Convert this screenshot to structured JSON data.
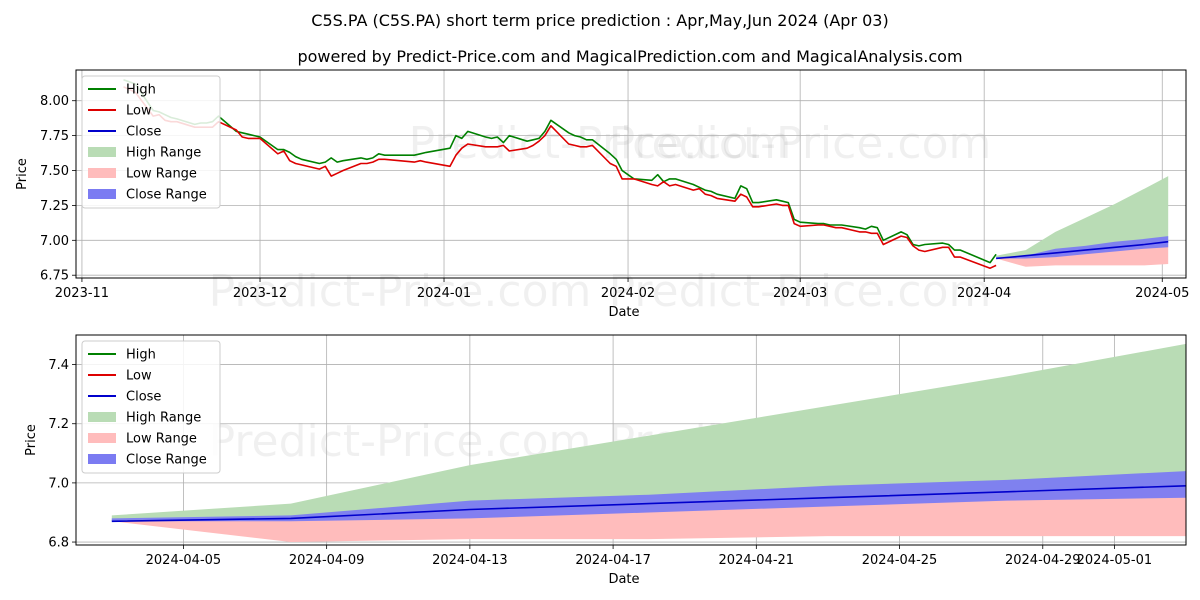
{
  "title": "C5S.PA (C5S.PA) short term price prediction : Apr,May,Jun 2024 (Apr 03)",
  "subtitle": "powered by Predict-Price.com and MagicalPrediction.com and MagicalAnalysis.com",
  "watermark": "Predict-Price.com",
  "colors": {
    "high": "#008000",
    "low": "#dd0000",
    "close": "#0000cc",
    "high_range": "#b9dcb5",
    "low_range": "#ffbcbc",
    "close_range": "#7b7bf2",
    "grid": "#b0b0b0"
  },
  "chart_data": [
    {
      "type": "line",
      "xlabel": "Date",
      "ylabel": "Price",
      "xlim": [
        "2023-10-31",
        "2024-05-05"
      ],
      "ylim": [
        6.73,
        8.22
      ],
      "yticks": [
        6.75,
        7.0,
        7.25,
        7.5,
        7.75,
        8.0
      ],
      "ytick_labels": [
        "6.75",
        "7.00",
        "7.25",
        "7.50",
        "7.75",
        "8.00"
      ],
      "xticks": [
        "2023-11-01",
        "2023-12-01",
        "2024-01-01",
        "2024-02-01",
        "2024-03-01",
        "2024-04-01",
        "2024-05-01"
      ],
      "xtick_labels": [
        "2023-11",
        "2023-12",
        "2024-01",
        "2024-02",
        "2024-03",
        "2024-04",
        "2024-05"
      ],
      "legend": {
        "position": "top-left",
        "entries": [
          "High",
          "Low",
          "Close",
          "High Range",
          "Low Range",
          "Close Range"
        ]
      },
      "grid": true,
      "series": [
        {
          "name": "High",
          "x": [
            "2023-11-08",
            "2023-11-10",
            "2023-11-13",
            "2023-11-14",
            "2023-11-15",
            "2023-11-16",
            "2023-11-17",
            "2023-11-20",
            "2023-11-21",
            "2023-11-22",
            "2023-11-23",
            "2023-11-24",
            "2023-11-27",
            "2023-11-28",
            "2023-11-29",
            "2023-11-30",
            "2023-12-01",
            "2023-12-04",
            "2023-12-05",
            "2023-12-06",
            "2023-12-07",
            "2023-12-08",
            "2023-12-11",
            "2023-12-12",
            "2023-12-13",
            "2023-12-14",
            "2023-12-15",
            "2023-12-18",
            "2023-12-19",
            "2023-12-20",
            "2023-12-21",
            "2023-12-22",
            "2023-12-27",
            "2023-12-28",
            "2023-12-29",
            "2024-01-02",
            "2024-01-03",
            "2024-01-04",
            "2024-01-05",
            "2024-01-08",
            "2024-01-09",
            "2024-01-10",
            "2024-01-11",
            "2024-01-12",
            "2024-01-15",
            "2024-01-16",
            "2024-01-17",
            "2024-01-18",
            "2024-01-19",
            "2024-01-22",
            "2024-01-23",
            "2024-01-24",
            "2024-01-25",
            "2024-01-26",
            "2024-01-29",
            "2024-01-30",
            "2024-01-31",
            "2024-02-01",
            "2024-02-02",
            "2024-02-05",
            "2024-02-06",
            "2024-02-07",
            "2024-02-08",
            "2024-02-09",
            "2024-02-12",
            "2024-02-13",
            "2024-02-14",
            "2024-02-15",
            "2024-02-16",
            "2024-02-19",
            "2024-02-20",
            "2024-02-21",
            "2024-02-22",
            "2024-02-23",
            "2024-02-26",
            "2024-02-27",
            "2024-02-28",
            "2024-02-29",
            "2024-03-01",
            "2024-03-04",
            "2024-03-05",
            "2024-03-06",
            "2024-03-07",
            "2024-03-08",
            "2024-03-11",
            "2024-03-12",
            "2024-03-13",
            "2024-03-14",
            "2024-03-15",
            "2024-03-18",
            "2024-03-19",
            "2024-03-20",
            "2024-03-21",
            "2024-03-22",
            "2024-03-25",
            "2024-03-26",
            "2024-03-27",
            "2024-03-28",
            "2024-04-02",
            "2024-04-03"
          ],
          "values": [
            8.15,
            8.12,
            7.93,
            7.92,
            7.9,
            7.88,
            7.87,
            7.83,
            7.84,
            7.84,
            7.85,
            7.89,
            7.78,
            7.77,
            7.76,
            7.75,
            7.74,
            7.65,
            7.65,
            7.63,
            7.6,
            7.58,
            7.55,
            7.56,
            7.59,
            7.56,
            7.57,
            7.59,
            7.58,
            7.59,
            7.62,
            7.61,
            7.61,
            7.62,
            7.63,
            7.66,
            7.75,
            7.73,
            7.78,
            7.74,
            7.73,
            7.74,
            7.7,
            7.75,
            7.71,
            7.72,
            7.73,
            7.78,
            7.86,
            7.77,
            7.75,
            7.74,
            7.72,
            7.72,
            7.62,
            7.58,
            7.5,
            7.47,
            7.44,
            7.43,
            7.47,
            7.42,
            7.44,
            7.44,
            7.4,
            7.38,
            7.36,
            7.35,
            7.33,
            7.3,
            7.39,
            7.37,
            7.27,
            7.27,
            7.29,
            7.28,
            7.27,
            7.15,
            7.13,
            7.12,
            7.12,
            7.11,
            7.11,
            7.11,
            7.09,
            7.08,
            7.1,
            7.09,
            7.0,
            7.06,
            7.04,
            6.97,
            6.96,
            6.97,
            6.98,
            6.97,
            6.93,
            6.93,
            6.84,
            6.9
          ]
        },
        {
          "name": "Low",
          "x": [
            "2023-11-08",
            "2023-11-10",
            "2023-11-13",
            "2023-11-14",
            "2023-11-15",
            "2023-11-16",
            "2023-11-17",
            "2023-11-20",
            "2023-11-21",
            "2023-11-22",
            "2023-11-23",
            "2023-11-24",
            "2023-11-27",
            "2023-11-28",
            "2023-11-29",
            "2023-11-30",
            "2023-12-01",
            "2023-12-04",
            "2023-12-05",
            "2023-12-06",
            "2023-12-07",
            "2023-12-08",
            "2023-12-11",
            "2023-12-12",
            "2023-12-13",
            "2023-12-14",
            "2023-12-15",
            "2023-12-18",
            "2023-12-19",
            "2023-12-20",
            "2023-12-21",
            "2023-12-22",
            "2023-12-27",
            "2023-12-28",
            "2023-12-29",
            "2024-01-02",
            "2024-01-03",
            "2024-01-04",
            "2024-01-05",
            "2024-01-08",
            "2024-01-09",
            "2024-01-10",
            "2024-01-11",
            "2024-01-12",
            "2024-01-15",
            "2024-01-16",
            "2024-01-17",
            "2024-01-18",
            "2024-01-19",
            "2024-01-22",
            "2024-01-23",
            "2024-01-24",
            "2024-01-25",
            "2024-01-26",
            "2024-01-29",
            "2024-01-30",
            "2024-01-31",
            "2024-02-01",
            "2024-02-02",
            "2024-02-05",
            "2024-02-06",
            "2024-02-07",
            "2024-02-08",
            "2024-02-09",
            "2024-02-12",
            "2024-02-13",
            "2024-02-14",
            "2024-02-15",
            "2024-02-16",
            "2024-02-19",
            "2024-02-20",
            "2024-02-21",
            "2024-02-22",
            "2024-02-23",
            "2024-02-26",
            "2024-02-27",
            "2024-02-28",
            "2024-02-29",
            "2024-03-01",
            "2024-03-04",
            "2024-03-05",
            "2024-03-06",
            "2024-03-07",
            "2024-03-08",
            "2024-03-11",
            "2024-03-12",
            "2024-03-13",
            "2024-03-14",
            "2024-03-15",
            "2024-03-18",
            "2024-03-19",
            "2024-03-20",
            "2024-03-21",
            "2024-03-22",
            "2024-03-25",
            "2024-03-26",
            "2024-03-27",
            "2024-03-28",
            "2024-04-02",
            "2024-04-03"
          ],
          "values": [
            8.1,
            8.06,
            7.89,
            7.9,
            7.86,
            7.85,
            7.85,
            7.81,
            7.81,
            7.81,
            7.81,
            7.85,
            7.79,
            7.74,
            7.73,
            7.73,
            7.73,
            7.62,
            7.64,
            7.57,
            7.55,
            7.54,
            7.51,
            7.53,
            7.46,
            7.48,
            7.5,
            7.55,
            7.55,
            7.56,
            7.58,
            7.58,
            7.56,
            7.57,
            7.56,
            7.53,
            7.61,
            7.66,
            7.69,
            7.67,
            7.67,
            7.67,
            7.68,
            7.64,
            7.66,
            7.68,
            7.71,
            7.75,
            7.82,
            7.69,
            7.68,
            7.67,
            7.67,
            7.68,
            7.55,
            7.53,
            7.44,
            7.44,
            7.44,
            7.4,
            7.39,
            7.42,
            7.39,
            7.4,
            7.36,
            7.37,
            7.33,
            7.32,
            7.3,
            7.28,
            7.33,
            7.31,
            7.24,
            7.24,
            7.26,
            7.25,
            7.25,
            7.12,
            7.1,
            7.11,
            7.11,
            7.1,
            7.09,
            7.09,
            7.06,
            7.06,
            7.05,
            7.05,
            6.97,
            7.03,
            7.02,
            6.96,
            6.93,
            6.92,
            6.95,
            6.95,
            6.88,
            6.88,
            6.8,
            6.82
          ]
        },
        {
          "name": "Close",
          "x": [
            "2024-04-03",
            "2024-04-08",
            "2024-04-13",
            "2024-04-18",
            "2024-04-23",
            "2024-04-28",
            "2024-05-02"
          ],
          "values": [
            6.87,
            6.89,
            6.91,
            6.93,
            6.95,
            6.97,
            6.99
          ]
        },
        {
          "name": "High Range",
          "x": [
            "2024-04-03",
            "2024-04-08",
            "2024-04-13",
            "2024-04-18",
            "2024-04-23",
            "2024-04-28",
            "2024-05-02"
          ],
          "upper": [
            6.89,
            6.93,
            7.06,
            7.16,
            7.26,
            7.37,
            7.46
          ],
          "lower": [
            6.87,
            6.89,
            6.91,
            6.93,
            6.95,
            6.97,
            6.99
          ]
        },
        {
          "name": "Low Range",
          "x": [
            "2024-04-03",
            "2024-04-08",
            "2024-04-13",
            "2024-04-18",
            "2024-04-23",
            "2024-04-28",
            "2024-05-02"
          ],
          "upper": [
            6.87,
            6.89,
            6.91,
            6.93,
            6.95,
            6.97,
            6.99
          ],
          "lower": [
            6.87,
            6.81,
            6.82,
            6.82,
            6.82,
            6.82,
            6.83
          ]
        },
        {
          "name": "Close Range",
          "x": [
            "2024-04-03",
            "2024-04-08",
            "2024-04-13",
            "2024-04-18",
            "2024-04-23",
            "2024-04-28",
            "2024-05-02"
          ],
          "upper": [
            6.88,
            6.89,
            6.94,
            6.96,
            6.99,
            7.01,
            7.03
          ],
          "lower": [
            6.87,
            6.87,
            6.88,
            6.9,
            6.92,
            6.94,
            6.95
          ]
        }
      ]
    },
    {
      "type": "line",
      "xlabel": "Date",
      "ylabel": "Price",
      "xlim": [
        "2024-04-02",
        "2024-05-03"
      ],
      "ylim": [
        6.79,
        7.5
      ],
      "yticks": [
        6.8,
        7.0,
        7.2,
        7.4
      ],
      "ytick_labels": [
        "6.8",
        "7.0",
        "7.2",
        "7.4"
      ],
      "xticks": [
        "2024-04-05",
        "2024-04-09",
        "2024-04-13",
        "2024-04-17",
        "2024-04-21",
        "2024-04-25",
        "2024-04-29",
        "2024-05-01"
      ],
      "xtick_labels": [
        "2024-04-05",
        "2024-04-09",
        "2024-04-13",
        "2024-04-17",
        "2024-04-21",
        "2024-04-25",
        "2024-04-29",
        "2024-05-01"
      ],
      "legend": {
        "position": "top-left",
        "entries": [
          "High",
          "Low",
          "Close",
          "High Range",
          "Low Range",
          "Close Range"
        ]
      },
      "grid": true,
      "series": [
        {
          "name": "Close",
          "x": [
            "2024-04-03",
            "2024-04-08",
            "2024-04-13",
            "2024-04-18",
            "2024-04-23",
            "2024-04-28",
            "2024-05-03"
          ],
          "values": [
            6.87,
            6.88,
            6.91,
            6.93,
            6.95,
            6.97,
            6.99
          ]
        },
        {
          "name": "High Range",
          "x": [
            "2024-04-03",
            "2024-04-08",
            "2024-04-13",
            "2024-04-18",
            "2024-04-23",
            "2024-04-28",
            "2024-05-03"
          ],
          "upper": [
            6.89,
            6.93,
            7.06,
            7.16,
            7.26,
            7.36,
            7.47
          ],
          "lower": [
            6.87,
            6.88,
            6.91,
            6.93,
            6.95,
            6.97,
            6.99
          ]
        },
        {
          "name": "Low Range",
          "x": [
            "2024-04-03",
            "2024-04-08",
            "2024-04-13",
            "2024-04-18",
            "2024-04-23",
            "2024-04-28",
            "2024-05-03"
          ],
          "upper": [
            6.87,
            6.88,
            6.91,
            6.93,
            6.95,
            6.97,
            6.99
          ],
          "lower": [
            6.87,
            6.8,
            6.81,
            6.81,
            6.82,
            6.82,
            6.82
          ]
        },
        {
          "name": "Close Range",
          "x": [
            "2024-04-03",
            "2024-04-08",
            "2024-04-13",
            "2024-04-18",
            "2024-04-23",
            "2024-04-28",
            "2024-05-03"
          ],
          "upper": [
            6.88,
            6.89,
            6.94,
            6.96,
            6.99,
            7.01,
            7.04
          ],
          "lower": [
            6.87,
            6.87,
            6.88,
            6.9,
            6.92,
            6.94,
            6.95
          ]
        }
      ]
    }
  ]
}
